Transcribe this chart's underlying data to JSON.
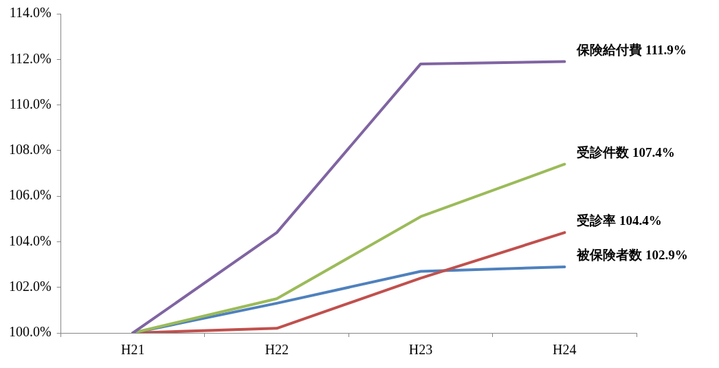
{
  "chart_data": {
    "type": "line",
    "categories": [
      "H21",
      "H22",
      "H23",
      "H24"
    ],
    "series": [
      {
        "name": "保険給付費",
        "color": "#8064a2",
        "values": [
          100,
          104.4,
          111.8,
          111.9
        ],
        "value_labels": [
          null,
          null,
          null,
          "111.9%"
        ]
      },
      {
        "name": "受診件数",
        "color": "#9bbb59",
        "values": [
          100,
          101.5,
          105.1,
          107.4
        ],
        "value_labels": [
          null,
          null,
          null,
          "107.4%"
        ]
      },
      {
        "name": "受診率",
        "color": "#c0504d",
        "values": [
          100,
          100.2,
          102.4,
          104.4
        ],
        "value_labels": [
          null,
          null,
          null,
          "104.4%"
        ]
      },
      {
        "name": "被保険者数",
        "color": "#4f81bd",
        "values": [
          100,
          101.3,
          102.7,
          102.9
        ],
        "value_labels": [
          null,
          null,
          null,
          "102.9%"
        ]
      }
    ],
    "ylim": [
      100,
      114
    ],
    "yticks": [
      {
        "value": 100,
        "label": "100.0%"
      },
      {
        "value": 102,
        "label": "102.0%"
      },
      {
        "value": 104,
        "label": "104.0%"
      },
      {
        "value": 106,
        "label": "106.0%"
      },
      {
        "value": 108,
        "label": "108.0%"
      },
      {
        "value": 110,
        "label": "110.0%"
      },
      {
        "value": 112,
        "label": "112.0%"
      },
      {
        "value": 114,
        "label": "114.0%"
      }
    ],
    "grid": false,
    "legend": false,
    "marker": "none",
    "line_style": "solid"
  }
}
